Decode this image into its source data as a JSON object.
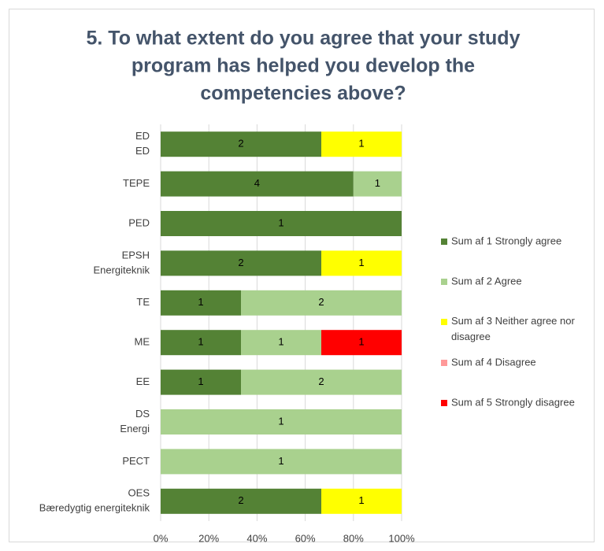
{
  "chart_data": {
    "type": "bar",
    "orientation": "horizontal",
    "stacking": "percent",
    "title": [
      "5. To what extent do you agree that your study",
      "program has helped you develop the",
      "competencies above?"
    ],
    "categories": [
      [
        "ED",
        "ED"
      ],
      [
        "TEPE"
      ],
      [
        "PED"
      ],
      [
        "EPSH",
        "Energiteknik"
      ],
      [
        "TE"
      ],
      [
        "ME"
      ],
      [
        "EE"
      ],
      [
        "DS",
        "Energi"
      ],
      [
        "PECT"
      ],
      [
        "OES",
        "Bæredygtig energiteknik"
      ]
    ],
    "series": [
      {
        "name": "Sum af 1 Strongly agree",
        "color": "#548235",
        "values": [
          2,
          4,
          1,
          2,
          1,
          1,
          1,
          null,
          null,
          2
        ]
      },
      {
        "name": "Sum af 2 Agree",
        "color": "#a9d18e",
        "values": [
          null,
          1,
          null,
          null,
          2,
          1,
          2,
          1,
          1,
          null
        ]
      },
      {
        "name": "Sum af 3 Neither agree nor disagree",
        "color": "#ffff00",
        "values": [
          1,
          null,
          null,
          1,
          null,
          null,
          null,
          null,
          null,
          1
        ]
      },
      {
        "name": "Sum af 4 Disagree",
        "color": "#ff9999",
        "values": [
          null,
          null,
          null,
          null,
          null,
          null,
          null,
          null,
          null,
          null
        ]
      },
      {
        "name": "Sum af 5 Strongly disagree",
        "color": "#ff0000",
        "values": [
          null,
          null,
          null,
          null,
          null,
          1,
          null,
          null,
          null,
          null
        ]
      }
    ],
    "xlim": [
      0,
      100
    ],
    "xticks": [
      {
        "value": 0,
        "label": "0%"
      },
      {
        "value": 20,
        "label": "20%"
      },
      {
        "value": 40,
        "label": "40%"
      },
      {
        "value": 60,
        "label": "60%"
      },
      {
        "value": 80,
        "label": "80%"
      },
      {
        "value": 100,
        "label": "100%"
      }
    ],
    "grid": true,
    "legend": "right"
  }
}
